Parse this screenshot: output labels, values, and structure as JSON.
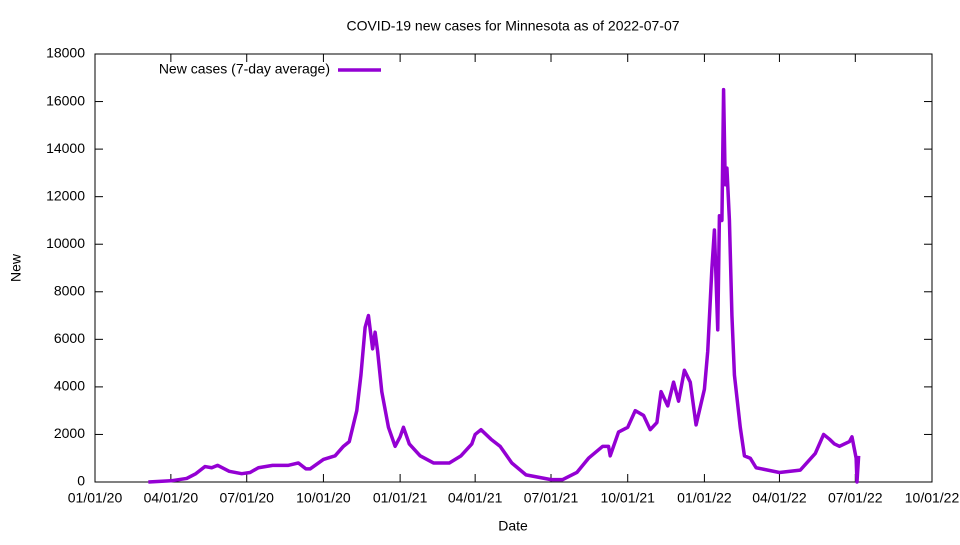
{
  "chart_data": {
    "type": "line",
    "title": "COVID-19 new cases for Minnesota as of 2022-07-07",
    "x_label": "Date",
    "y_label": "New",
    "legend": "top-left",
    "grid": false,
    "x": [
      "2020-03-05",
      "2020-04-01",
      "2020-04-20",
      "2020-05-01",
      "2020-05-12",
      "2020-05-20",
      "2020-05-27",
      "2020-06-10",
      "2020-06-25",
      "2020-07-05",
      "2020-07-15",
      "2020-08-01",
      "2020-08-20",
      "2020-09-01",
      "2020-09-10",
      "2020-09-15",
      "2020-10-01",
      "2020-10-15",
      "2020-10-25",
      "2020-11-01",
      "2020-11-10",
      "2020-11-15",
      "2020-11-20",
      "2020-11-24",
      "2020-11-29",
      "2020-12-02",
      "2020-12-05",
      "2020-12-10",
      "2020-12-18",
      "2020-12-26",
      "2021-01-01",
      "2021-01-05",
      "2021-01-12",
      "2021-01-25",
      "2021-02-10",
      "2021-03-01",
      "2021-03-15",
      "2021-03-28",
      "2021-04-01",
      "2021-04-08",
      "2021-04-20",
      "2021-05-01",
      "2021-05-15",
      "2021-06-01",
      "2021-07-01",
      "2021-07-15",
      "2021-08-01",
      "2021-08-15",
      "2021-09-01",
      "2021-09-08",
      "2021-09-10",
      "2021-09-20",
      "2021-10-01",
      "2021-10-10",
      "2021-10-20",
      "2021-10-28",
      "2021-11-05",
      "2021-11-10",
      "2021-11-18",
      "2021-11-25",
      "2021-12-01",
      "2021-12-08",
      "2021-12-15",
      "2021-12-22",
      "2022-01-01",
      "2022-01-05",
      "2022-01-10",
      "2022-01-13",
      "2022-01-17",
      "2022-01-19",
      "2022-01-22",
      "2022-01-24",
      "2022-01-26",
      "2022-01-28",
      "2022-01-31",
      "2022-02-03",
      "2022-02-06",
      "2022-02-13",
      "2022-02-18",
      "2022-02-25",
      "2022-03-04",
      "2022-04-01",
      "2022-04-26",
      "2022-05-14",
      "2022-05-24",
      "2022-05-31",
      "2022-06-06",
      "2022-06-12",
      "2022-06-24",
      "2022-06-27",
      "2022-07-02",
      "2022-07-03",
      "2022-07-05"
    ],
    "series": [
      {
        "name": "New cases (7-day average)",
        "color": "#9400d3",
        "values": [
          0,
          50,
          150,
          350,
          650,
          600,
          700,
          450,
          350,
          400,
          600,
          700,
          700,
          800,
          550,
          550,
          950,
          1100,
          1500,
          1700,
          3000,
          4500,
          6500,
          7000,
          5600,
          6300,
          5500,
          3800,
          2300,
          1500,
          1900,
          2300,
          1600,
          1100,
          800,
          800,
          1100,
          1600,
          2000,
          2200,
          1800,
          1500,
          800,
          300,
          100,
          100,
          400,
          1000,
          1500,
          1500,
          1100,
          2100,
          2300,
          3000,
          2800,
          2200,
          2500,
          3800,
          3200,
          4200,
          3400,
          4700,
          4200,
          2400,
          3900,
          5500,
          9000,
          10600,
          6400,
          11200,
          11000,
          16500,
          12500,
          13200,
          11000,
          7000,
          4500,
          2300,
          1100,
          1000,
          600,
          400,
          500,
          1200,
          2000,
          1800,
          1600,
          1500,
          1700,
          1900,
          1000,
          0,
          1100
        ]
      }
    ],
    "xlim": [
      "2020-01-01",
      "2022-10-01"
    ],
    "xticks": [
      {
        "value": "2020-01-01",
        "label": "01/01/20"
      },
      {
        "value": "2020-04-01",
        "label": "04/01/20"
      },
      {
        "value": "2020-07-01",
        "label": "07/01/20"
      },
      {
        "value": "2020-10-01",
        "label": "10/01/20"
      },
      {
        "value": "2021-01-01",
        "label": "01/01/21"
      },
      {
        "value": "2021-04-01",
        "label": "04/01/21"
      },
      {
        "value": "2021-07-01",
        "label": "07/01/21"
      },
      {
        "value": "2021-10-01",
        "label": "10/01/21"
      },
      {
        "value": "2022-01-01",
        "label": "01/01/22"
      },
      {
        "value": "2022-04-01",
        "label": "04/01/22"
      },
      {
        "value": "2022-07-01",
        "label": "07/01/22"
      },
      {
        "value": "2022-10-01",
        "label": "10/01/22"
      }
    ],
    "ylim": [
      0,
      18000
    ],
    "yticks": [
      0,
      2000,
      4000,
      6000,
      8000,
      10000,
      12000,
      14000,
      16000,
      18000
    ]
  }
}
